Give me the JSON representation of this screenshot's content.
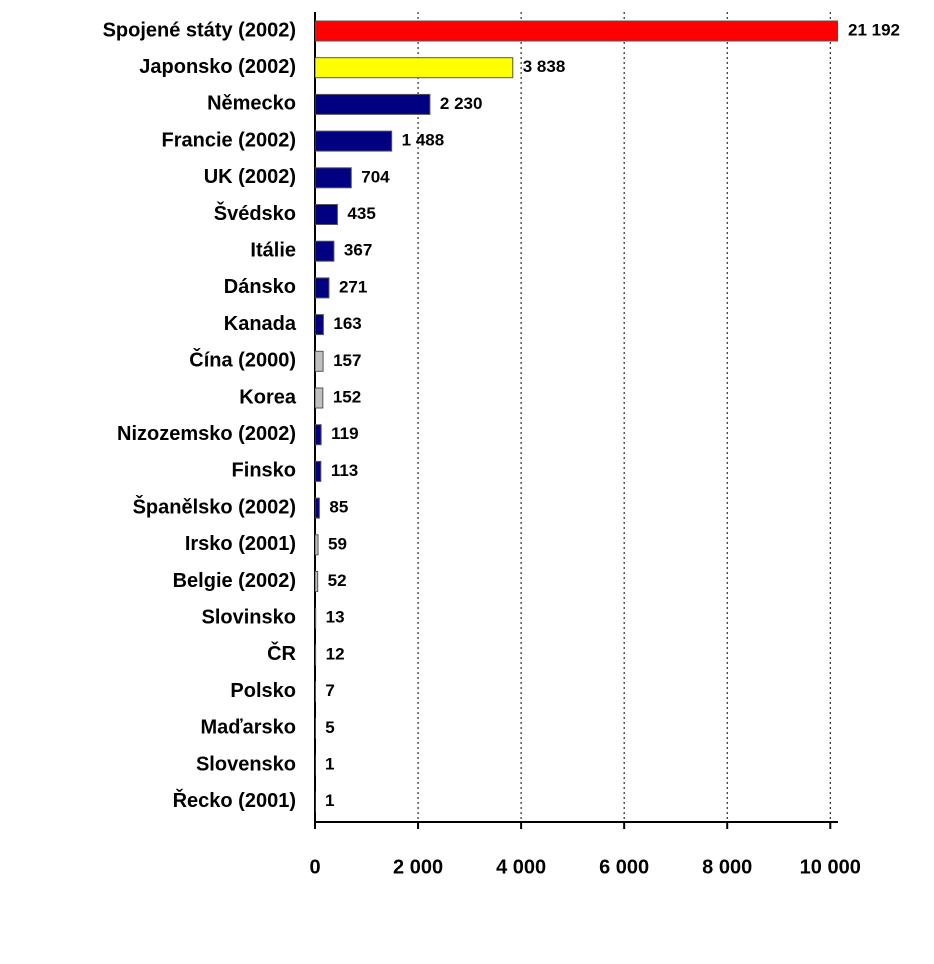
{
  "chart_data": {
    "type": "bar",
    "orientation": "horizontal",
    "categories": [
      "Spojené státy (2002)",
      "Japonsko (2002)",
      "Německo",
      "Francie (2002)",
      "UK (2002)",
      "Švédsko",
      "Itálie",
      "Dánsko",
      "Kanada",
      "Čína  (2000)",
      "Korea",
      "Nizozemsko (2002)",
      "Finsko",
      "Španělsko (2002)",
      "Irsko (2001)",
      "Belgie (2002)",
      "Slovinsko",
      "ČR",
      "Polsko",
      "Maďarsko",
      "Slovensko",
      "Řecko (2001)"
    ],
    "values": [
      21192,
      3838,
      2230,
      1488,
      704,
      435,
      367,
      271,
      163,
      157,
      152,
      119,
      113,
      85,
      59,
      52,
      13,
      12,
      7,
      5,
      1,
      1
    ],
    "value_labels": [
      "21 192",
      "3 838",
      "2 230",
      "1 488",
      "704",
      "435",
      "367",
      "271",
      "163",
      "157",
      "152",
      "119",
      "113",
      "85",
      "59",
      "52",
      "13",
      "12",
      "7",
      "5",
      "1",
      "1"
    ],
    "colors": [
      "#ff0000",
      "#ffff00",
      "#000080",
      "#000080",
      "#000080",
      "#000080",
      "#000080",
      "#000080",
      "#000080",
      "#c0c0c0",
      "#c0c0c0",
      "#000080",
      "#000080",
      "#000080",
      "#c0c0c0",
      "#c0c0c0",
      "#c0c0c0",
      "#c0c0c0",
      "#c0c0c0",
      "#c0c0c0",
      "#c0c0c0",
      "#c0c0c0"
    ],
    "xlim": [
      0,
      10150
    ],
    "xticks": [
      0,
      {
        "value": 2000,
        "label": "2 000"
      },
      {
        "value": 4000,
        "label": "4 000"
      },
      {
        "value": 6000,
        "label": "6 000"
      },
      {
        "value": 8000,
        "label": "8 000"
      },
      {
        "value": 10000,
        "label": "10 000"
      }
    ],
    "grid": true
  }
}
